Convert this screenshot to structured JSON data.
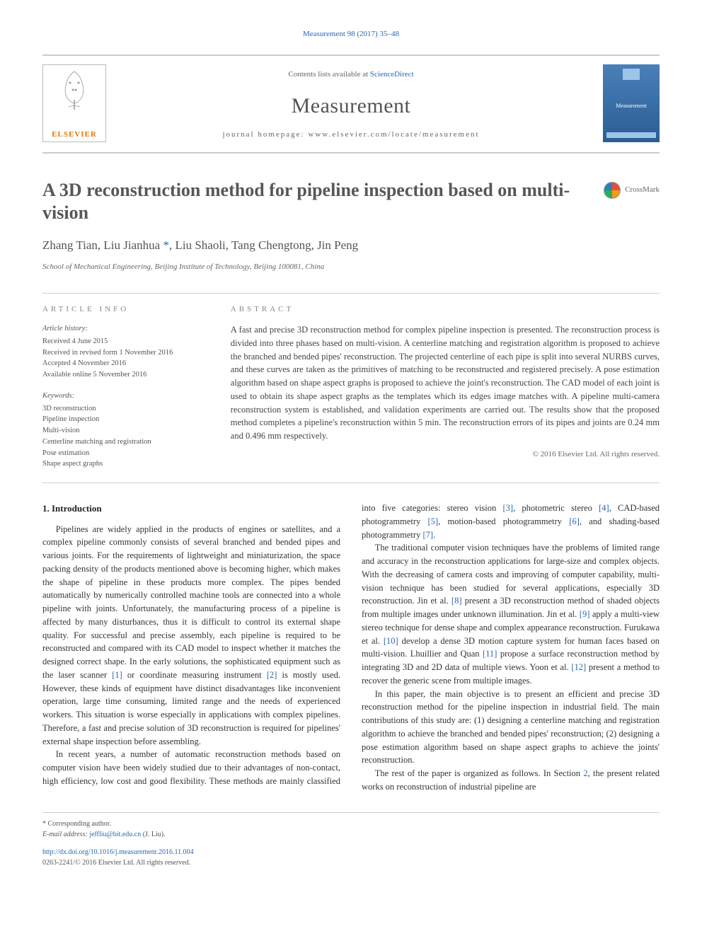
{
  "top_citation": "Measurement 98 (2017) 35–48",
  "header": {
    "contents_prefix": "Contents lists available at ",
    "contents_link": "ScienceDirect",
    "journal_name": "Measurement",
    "homepage_prefix": "journal homepage: ",
    "homepage_url": "www.elsevier.com/locate/measurement",
    "publisher_logo_text": "ELSEVIER",
    "cover_label": "Measurement"
  },
  "crossmark_label": "CrossMark",
  "title": "A 3D reconstruction method for pipeline inspection based on multi-vision",
  "authors_line": "Zhang Tian, Liu Jianhua *, Liu Shaoli, Tang Chengtong, Jin Peng",
  "affiliation": "School of Mechanical Engineering, Beijing Institute of Technology, Beijing 100081, China",
  "meta": {
    "info_heading": "ARTICLE INFO",
    "abstract_heading": "ABSTRACT",
    "history_label": "Article history:",
    "history": [
      "Received 4 June 2015",
      "Received in revised form 1 November 2016",
      "Accepted 4 November 2016",
      "Available online 5 November 2016"
    ],
    "keywords_label": "Keywords:",
    "keywords": [
      "3D reconstruction",
      "Pipeline inspection",
      "Multi-vision",
      "Centerline matching and registration",
      "Pose estimation",
      "Shape aspect graphs"
    ],
    "abstract": "A fast and precise 3D reconstruction method for complex pipeline inspection is presented. The reconstruction process is divided into three phases based on multi-vision. A centerline matching and registration algorithm is proposed to achieve the branched and bended pipes' reconstruction. The projected centerline of each pipe is split into several NURBS curves, and these curves are taken as the primitives of matching to be reconstructed and registered precisely. A pose estimation algorithm based on shape aspect graphs is proposed to achieve the joint's reconstruction. The CAD model of each joint is used to obtain its shape aspect graphs as the templates which its edges image matches with. A pipeline multi-camera reconstruction system is established, and validation experiments are carried out. The results show that the proposed method completes a pipeline's reconstruction within 5 min. The reconstruction errors of its pipes and joints are 0.24 mm and 0.496 mm respectively.",
    "copyright": "© 2016 Elsevier Ltd. All rights reserved."
  },
  "body": {
    "section1_heading": "1. Introduction",
    "p1a": "Pipelines are widely applied in the products of engines or satellites, and a complex pipeline commonly consists of several branched and bended pipes and various joints. For the requirements of lightweight and miniaturization, the space packing density of the products mentioned above is becoming higher, which makes the shape of pipeline in these products more complex. The pipes bended automatically by numerically controlled machine tools are connected into a whole pipeline with joints. Unfortunately, the manufacturing process of a pipeline is affected by many disturbances, thus it is difficult to control its external shape quality. For successful and precise assembly, each pipeline is required to be reconstructed and compared with its CAD model to inspect whether it matches the designed correct shape. In the early solutions, the sophisticated equipment such as the laser scanner ",
    "r1": "[1]",
    "p1b": " or coordinate measuring instrument ",
    "r2": "[2]",
    "p1c": " is mostly used. However, these kinds of equipment have distinct disadvantages like inconvenient operation, large time consuming, limited range and the needs of experienced workers. This situation is worse especially in applications with complex pipelines. Therefore, a fast and precise solution of 3D reconstruction is required for pipelines' external shape inspection before assembling.",
    "p2a": "In recent years, a number of automatic reconstruction methods based on computer vision have been widely studied due to their advantages of non-contact, high efficiency, low cost and good flexibility. These methods are mainly classified into five categories: stereo vision ",
    "r3": "[3]",
    "p2b": ", photometric stereo ",
    "r4": "[4]",
    "p2c": ", CAD-based photogrammetry ",
    "r5": "[5]",
    "p2d": ", motion-based photogrammetry ",
    "r6": "[6]",
    "p2e": ", and shading-based photogrammetry ",
    "r7": "[7]",
    "p2f": ".",
    "p3a": "The traditional computer vision techniques have the problems of limited range and accuracy in the reconstruction applications for large-size and complex objects. With the decreasing of camera costs and improving of computer capability, multi-vision technique has been studied for several applications, especially 3D reconstruction. Jin et al. ",
    "r8": "[8]",
    "p3b": " present a 3D reconstruction method of shaded objects from multiple images under unknown illumination. Jin et al. ",
    "r9": "[9]",
    "p3c": " apply a multi-view stereo technique for dense shape and complex appearance reconstruction. Furukawa et al. ",
    "r10": "[10]",
    "p3d": " develop a dense 3D motion capture system for human faces based on multi-vision. Lhuillier and Quan ",
    "r11": "[11]",
    "p3e": " propose a surface reconstruction method by integrating 3D and 2D data of multiple views. Yoon et al. ",
    "r12": "[12]",
    "p3f": " present a method to recover the generic scene from multiple images.",
    "p4": "In this paper, the main objective is to present an efficient and precise 3D reconstruction method for the pipeline inspection in industrial field. The main contributions of this study are: (1) designing a centerline matching and registration algorithm to achieve the branched and bended pipes' reconstruction; (2) designing a pose estimation algorithm based on shape aspect graphs to achieve the joints' reconstruction.",
    "p5a": "The rest of the paper is organized as follows. In Section ",
    "s2": "2",
    "p5b": ", the present related works on reconstruction of industrial pipeline are"
  },
  "footer": {
    "corr_label": "* Corresponding author.",
    "email_label": "E-mail address: ",
    "email": "jeffliu@bit.edu.cn",
    "email_suffix": " (J. Liu).",
    "doi": "http://dx.doi.org/10.1016/j.measurement.2016.11.004",
    "issn_line": "0263-2241/© 2016 Elsevier Ltd. All rights reserved."
  },
  "colors": {
    "link": "#2968b0",
    "orange": "#e8750a",
    "cover_bg": "#2a5d94"
  }
}
